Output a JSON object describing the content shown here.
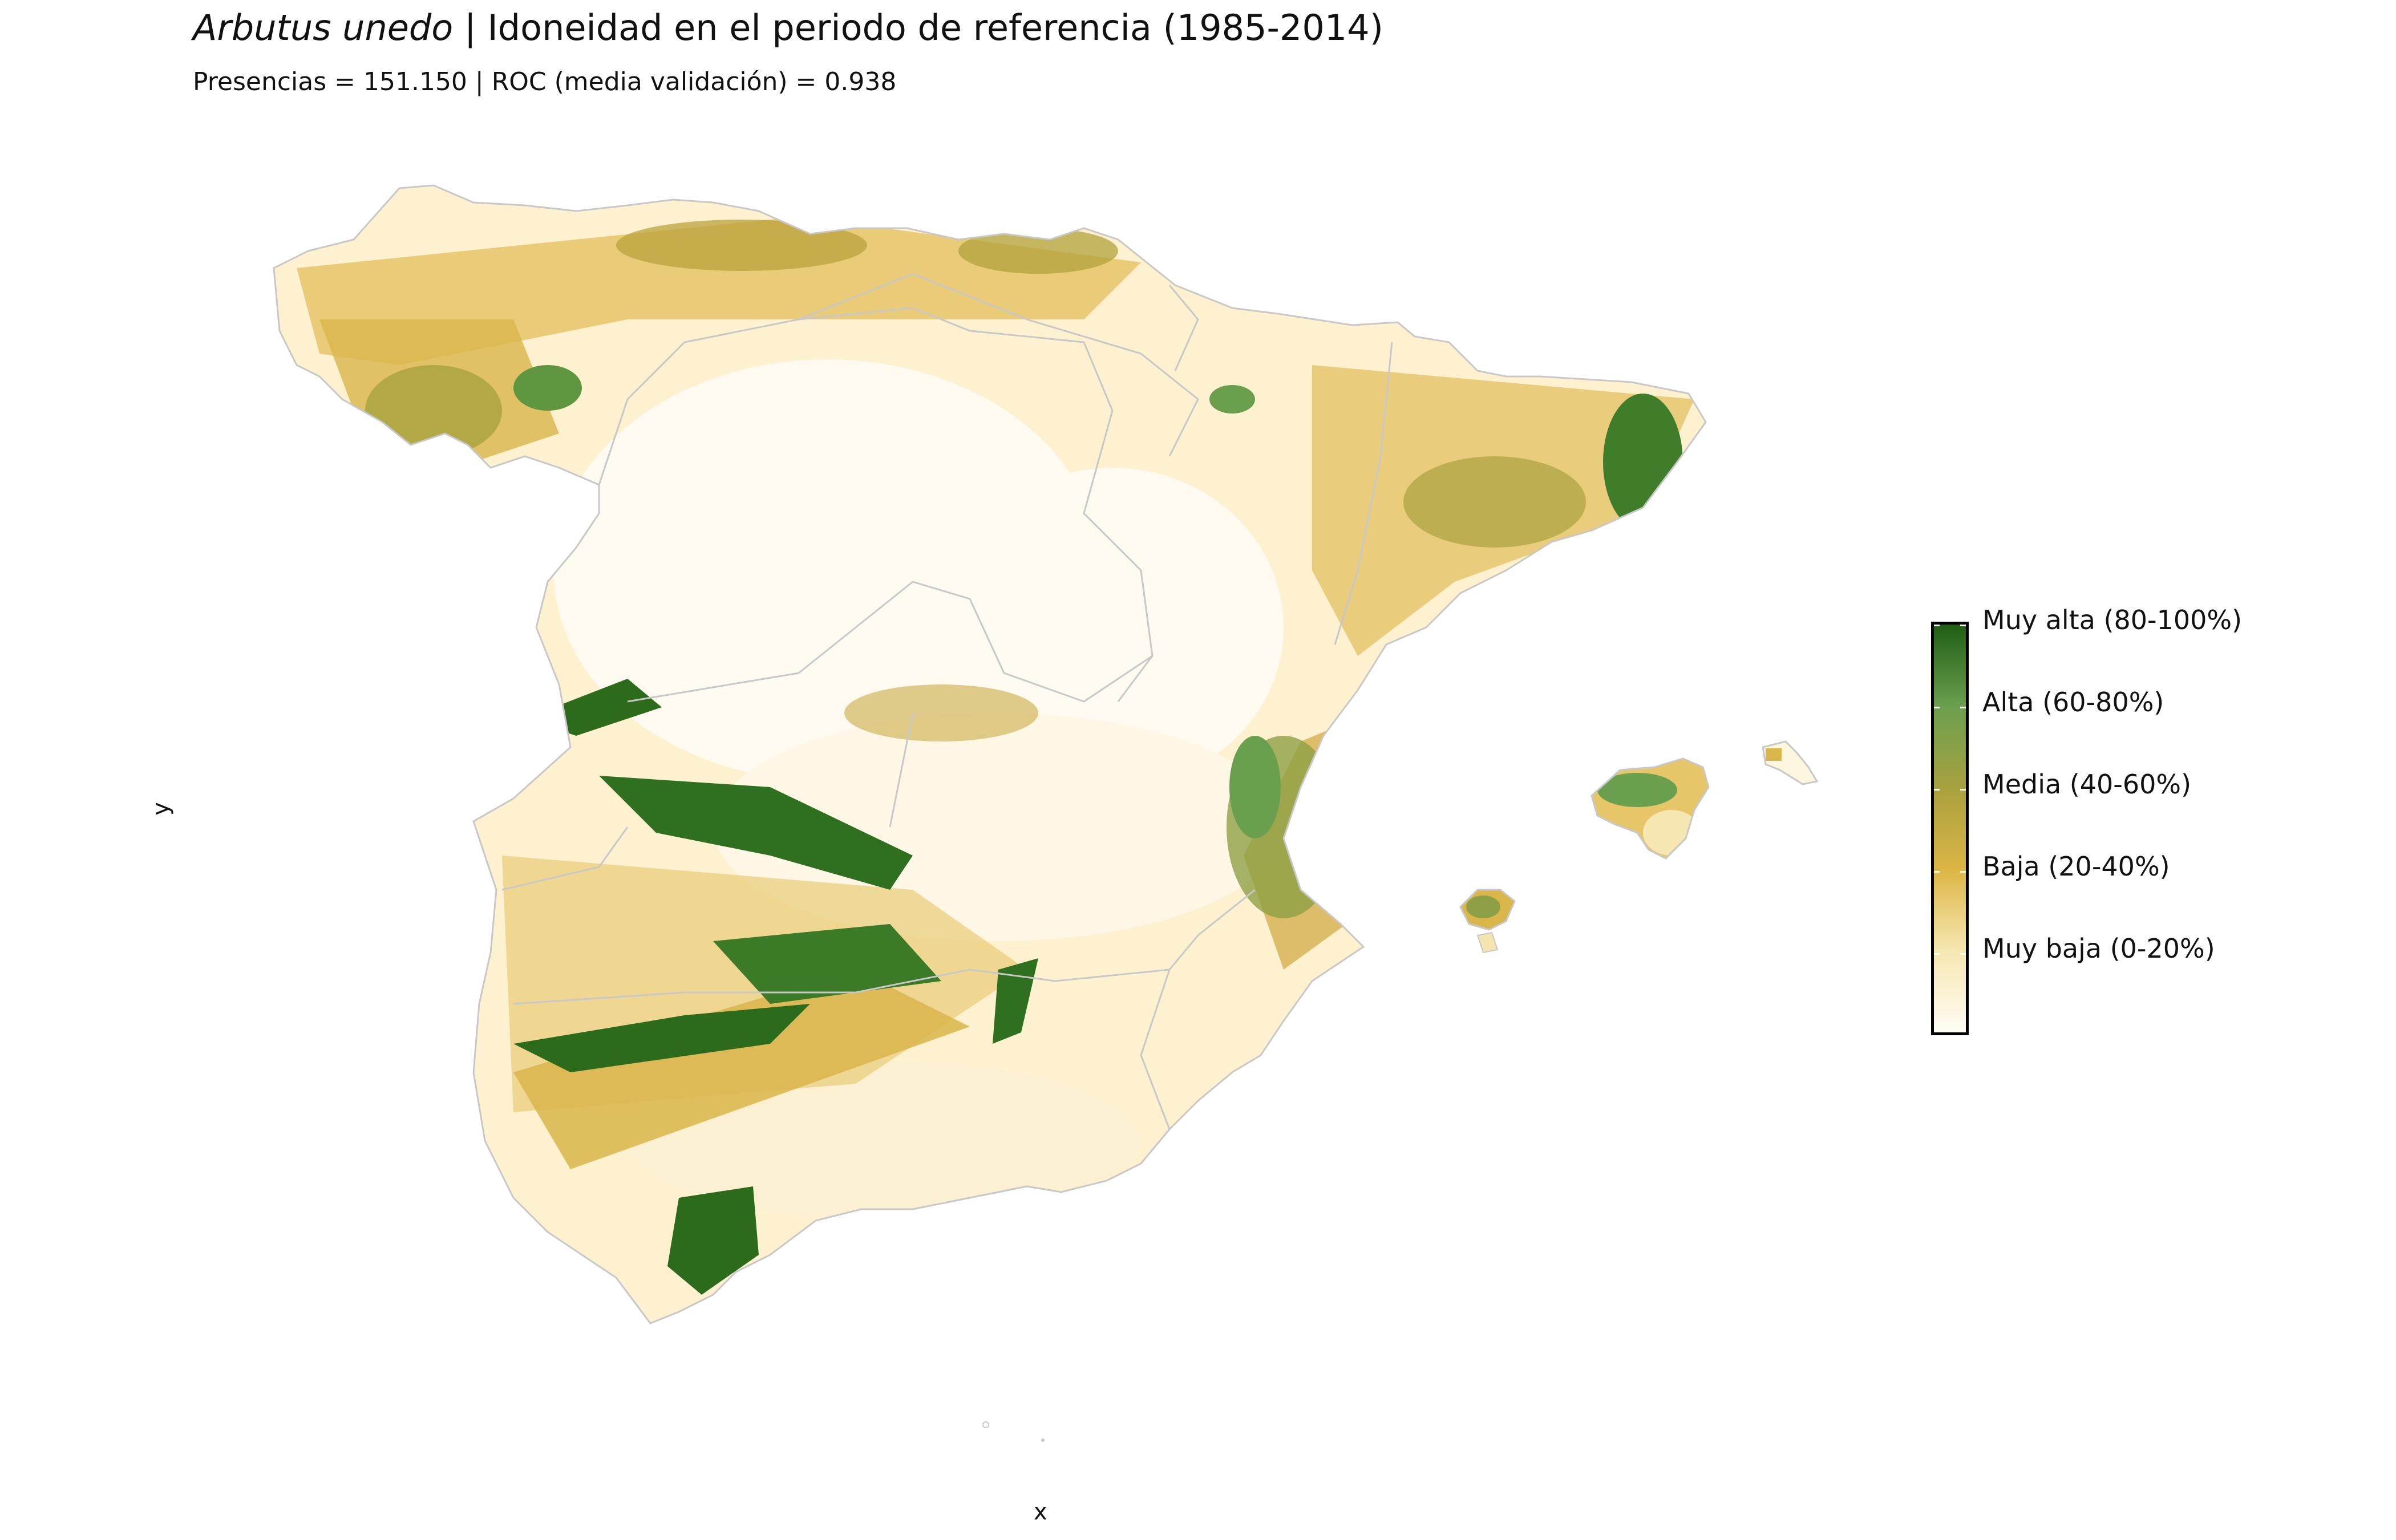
{
  "title": {
    "species": "Arbutus unedo",
    "rest": " | Idoneidad en el periodo de referencia (1985-2014)"
  },
  "subtitle": "Presencias = 151.150  |  ROC (media validación) = 0.938",
  "axes": {
    "x_label": "x",
    "y_label": "y"
  },
  "legend": {
    "items": [
      {
        "label": "Muy alta (80-100%)",
        "color": "#1f5e14"
      },
      {
        "label": "Alta (60-80%)",
        "color": "#6a9f4e"
      },
      {
        "label": "Media (40-60%)",
        "color": "#a8a13f"
      },
      {
        "label": "Baja (20-40%)",
        "color": "#dcb545"
      },
      {
        "label": "Muy baja (0-20%)",
        "color": "#f6e7b2"
      }
    ]
  },
  "colors": {
    "land_base": "#fdf6df",
    "border": "#c8c8c8",
    "very_high": "#2b6b1b",
    "high": "#5f9640",
    "medium": "#b2a13c",
    "low": "#d9b54a",
    "very_low": "#f3e4b0",
    "minimal": "#fffaf0"
  }
}
